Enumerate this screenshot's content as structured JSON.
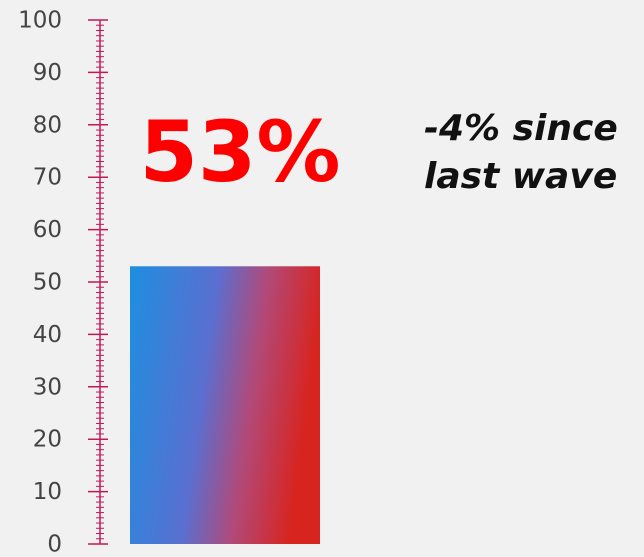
{
  "chart_data": {
    "type": "bar",
    "categories": [
      null
    ],
    "values": [
      53
    ],
    "value_labels": [
      "53%"
    ],
    "annotation": "-4% since last wave",
    "color": "#c2185b",
    "ylim": [
      0,
      100
    ],
    "yticks": [
      0,
      10,
      20,
      30,
      40,
      50,
      60,
      70,
      80,
      90,
      100
    ],
    "yminorticks": [
      0,
      1,
      2,
      3,
      4,
      5,
      6,
      7,
      8,
      9,
      10,
      11,
      12,
      13,
      14,
      15,
      16,
      17,
      18,
      19,
      20,
      21,
      22,
      23,
      24,
      25,
      26,
      27,
      28,
      29,
      30,
      31,
      32,
      33,
      34,
      35,
      36,
      37,
      38,
      39,
      40,
      41,
      42,
      43,
      44,
      45,
      46,
      47,
      48,
      49,
      50,
      51,
      52,
      53,
      54,
      55,
      56,
      57,
      58,
      59,
      60,
      61,
      62,
      63,
      64,
      65,
      66,
      67,
      68,
      69,
      70,
      71,
      72,
      73,
      74,
      75,
      76,
      77,
      78,
      79,
      80,
      81,
      82,
      83,
      84,
      85,
      86,
      87,
      88,
      89,
      90,
      91,
      92,
      93,
      94,
      95,
      96,
      97,
      98,
      99,
      100
    ]
  }
}
